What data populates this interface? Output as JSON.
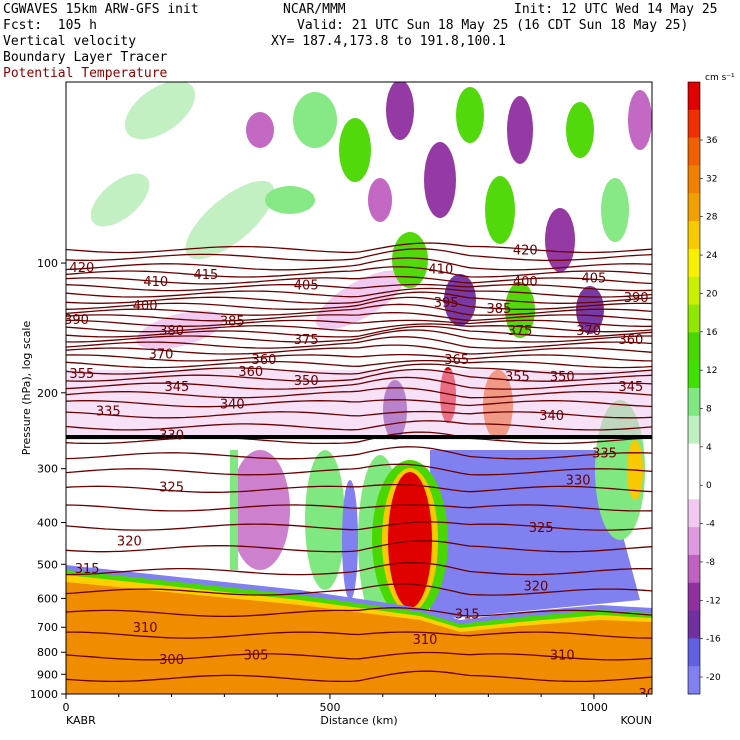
{
  "header": {
    "model": "CGWAVES 15km ARW-GFS init",
    "fcst": "Fcst:  105 h",
    "org": "NCAR/MMM",
    "init": "Init: 12 UTC Wed 14 May 25",
    "valid": "Valid: 21 UTC Sun 18 May 25 (16 CDT Sun 18 May 25)",
    "xy": "XY= 187.4,173.8 to 191.8,100.1",
    "field1": "Vertical velocity",
    "field2": "Boundary Layer Tracer",
    "field3": "Potential Temperature"
  },
  "colors": {
    "theta_line": "#6b0000",
    "boundary_layer": "#f08c00",
    "terrain_top": "#ffd000"
  },
  "chart_data": {
    "type": "heatmap",
    "xlabel": "Distance (km)",
    "ylabel": "Pressure (hPa), log scale",
    "x_ticks": [
      "0",
      "500",
      "1000"
    ],
    "x_range": [
      0,
      1110
    ],
    "y_ticks": [
      "100",
      "200",
      "300",
      "400",
      "500",
      "600",
      "700",
      "800",
      "900",
      "1000"
    ],
    "y_tick_values": [
      100,
      200,
      300,
      400,
      500,
      600,
      700,
      800,
      900,
      1000
    ],
    "y_range_hpa": [
      1000,
      38
    ],
    "x_end_labels": {
      "left": "KABR",
      "right": "KOUN"
    },
    "colorbar": {
      "units": "cm s⁻¹",
      "labels": [
        "36",
        "32",
        "28",
        "24",
        "20",
        "16",
        "12",
        "8",
        "4",
        "0",
        "-4",
        "-8",
        "-12",
        "-16",
        "-20"
      ],
      "colors": [
        "#e00000",
        "#f03000",
        "#f06000",
        "#f08000",
        "#f0a000",
        "#f8c800",
        "#f8f000",
        "#c8f000",
        "#90e800",
        "#48d800",
        "#40e000",
        "#80e880",
        "#c0f0c0",
        "#ffffff",
        "#ffffff",
        "#f0c8f0",
        "#e098e0",
        "#c060c0",
        "#9030a0",
        "#7030a0",
        "#6060e0",
        "#8080f0"
      ]
    },
    "theta_labels": [
      {
        "text": "420",
        "x": 30,
        "p": 102
      },
      {
        "text": "410",
        "x": 170,
        "p": 110
      },
      {
        "text": "415",
        "x": 265,
        "p": 106
      },
      {
        "text": "405",
        "x": 455,
        "p": 112
      },
      {
        "text": "410",
        "x": 710,
        "p": 103
      },
      {
        "text": "420",
        "x": 870,
        "p": 93
      },
      {
        "text": "400",
        "x": 870,
        "p": 110
      },
      {
        "text": "405",
        "x": 1000,
        "p": 108
      },
      {
        "text": "390",
        "x": 1080,
        "p": 120
      },
      {
        "text": "390",
        "x": 20,
        "p": 135
      },
      {
        "text": "400",
        "x": 150,
        "p": 125
      },
      {
        "text": "395",
        "x": 720,
        "p": 123
      },
      {
        "text": "385",
        "x": 820,
        "p": 127
      },
      {
        "text": "380",
        "x": 200,
        "p": 143
      },
      {
        "text": "385",
        "x": 315,
        "p": 136
      },
      {
        "text": "375",
        "x": 455,
        "p": 150
      },
      {
        "text": "375",
        "x": 860,
        "p": 143
      },
      {
        "text": "370",
        "x": 990,
        "p": 143
      },
      {
        "text": "360",
        "x": 1070,
        "p": 150
      },
      {
        "text": "370",
        "x": 180,
        "p": 162
      },
      {
        "text": "360",
        "x": 375,
        "p": 167
      },
      {
        "text": "365",
        "x": 740,
        "p": 167
      },
      {
        "text": "355",
        "x": 30,
        "p": 180
      },
      {
        "text": "360",
        "x": 350,
        "p": 178
      },
      {
        "text": "355",
        "x": 855,
        "p": 183
      },
      {
        "text": "350",
        "x": 940,
        "p": 183
      },
      {
        "text": "345",
        "x": 1070,
        "p": 193
      },
      {
        "text": "345",
        "x": 210,
        "p": 193
      },
      {
        "text": "350",
        "x": 455,
        "p": 187
      },
      {
        "text": "335",
        "x": 80,
        "p": 220
      },
      {
        "text": "340",
        "x": 315,
        "p": 212
      },
      {
        "text": "340",
        "x": 920,
        "p": 225
      },
      {
        "text": "330",
        "x": 200,
        "p": 250
      },
      {
        "text": "335",
        "x": 1020,
        "p": 275
      },
      {
        "text": "325",
        "x": 200,
        "p": 330
      },
      {
        "text": "330",
        "x": 970,
        "p": 318
      },
      {
        "text": "325",
        "x": 900,
        "p": 410
      },
      {
        "text": "320",
        "x": 120,
        "p": 440
      },
      {
        "text": "315",
        "x": 40,
        "p": 510
      },
      {
        "text": "320",
        "x": 890,
        "p": 560
      },
      {
        "text": "315",
        "x": 760,
        "p": 650
      },
      {
        "text": "310",
        "x": 150,
        "p": 700
      },
      {
        "text": "310",
        "x": 680,
        "p": 745
      },
      {
        "text": "305",
        "x": 360,
        "p": 810
      },
      {
        "text": "300",
        "x": 200,
        "p": 830
      },
      {
        "text": "310",
        "x": 940,
        "p": 810
      },
      {
        "text": "30",
        "x": 1100,
        "p": 995
      }
    ]
  }
}
